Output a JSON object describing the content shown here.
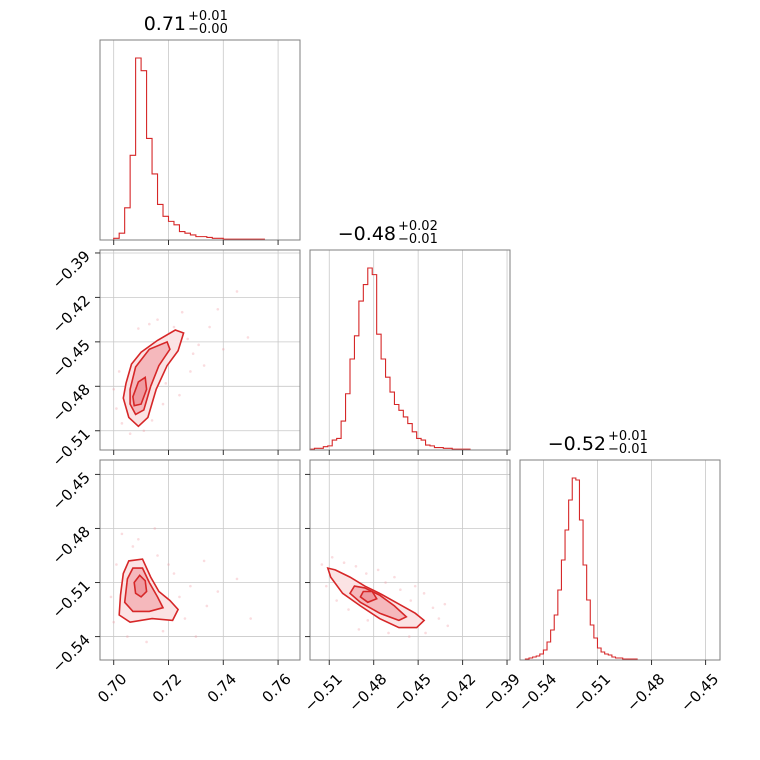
{
  "chart_data": {
    "type": "corner",
    "color": "#d62728",
    "grid": true,
    "parameters": [
      {
        "title_value": "0.71",
        "title_upper": "+0.01",
        "title_lower": "−0.00",
        "range": [
          0.695,
          0.768
        ],
        "ticks": [
          0.7,
          0.72,
          0.74,
          0.76
        ],
        "tick_labels": [
          "0.70",
          "0.72",
          "0.74",
          "0.76"
        ],
        "hist_bins": [
          0.7,
          0.702,
          0.704,
          0.706,
          0.708,
          0.71,
          0.712,
          0.714,
          0.716,
          0.718,
          0.72,
          0.722,
          0.724,
          0.726,
          0.728,
          0.73,
          0.732,
          0.734,
          0.736,
          0.738,
          0.74,
          0.745,
          0.75,
          0.755,
          0.76
        ],
        "hist_counts": [
          2,
          8,
          38,
          100,
          215,
          200,
          120,
          78,
          42,
          28,
          22,
          18,
          10,
          8,
          6,
          4,
          4,
          3,
          2,
          2,
          1,
          1,
          1,
          0
        ]
      },
      {
        "title_value": "−0.48",
        "title_upper": "+0.02",
        "title_lower": "−0.01",
        "range": [
          -0.523,
          -0.388
        ],
        "ticks": [
          -0.51,
          -0.48,
          -0.45,
          -0.42,
          -0.39
        ],
        "tick_labels": [
          "−0.51",
          "−0.48",
          "−0.45",
          "−0.42",
          "−0.39"
        ],
        "hist_bins": [
          -0.523,
          -0.52,
          -0.517,
          -0.514,
          -0.511,
          -0.508,
          -0.505,
          -0.502,
          -0.499,
          -0.496,
          -0.493,
          -0.49,
          -0.487,
          -0.484,
          -0.481,
          -0.478,
          -0.475,
          -0.472,
          -0.469,
          -0.466,
          -0.463,
          -0.46,
          -0.457,
          -0.454,
          -0.451,
          -0.448,
          -0.445,
          -0.442,
          -0.439,
          -0.436,
          -0.433,
          -0.43,
          -0.427,
          -0.424,
          -0.421,
          -0.418,
          -0.415,
          -0.412,
          -0.409,
          -0.406,
          -0.403,
          -0.4
        ],
        "hist_counts": [
          1,
          2,
          2,
          4,
          5,
          12,
          14,
          35,
          68,
          110,
          138,
          180,
          200,
          220,
          212,
          140,
          110,
          88,
          70,
          55,
          48,
          40,
          32,
          22,
          14,
          12,
          6,
          5,
          3,
          3,
          2,
          2,
          1,
          1,
          1,
          1,
          0,
          0,
          0,
          0,
          0
        ]
      },
      {
        "title_value": "−0.52",
        "title_upper": "+0.01",
        "title_lower": "−0.01",
        "range": [
          -0.553,
          -0.442
        ],
        "ticks": [
          -0.54,
          -0.51,
          -0.48,
          -0.45
        ],
        "tick_labels": [
          "−0.54",
          "−0.51",
          "−0.48",
          "−0.45"
        ],
        "hist_bins": [
          -0.55,
          -0.548,
          -0.546,
          -0.544,
          -0.542,
          -0.54,
          -0.538,
          -0.536,
          -0.534,
          -0.532,
          -0.53,
          -0.528,
          -0.526,
          -0.524,
          -0.522,
          -0.52,
          -0.518,
          -0.516,
          -0.514,
          -0.512,
          -0.51,
          -0.508,
          -0.506,
          -0.504,
          -0.502,
          -0.5,
          -0.498,
          -0.496,
          -0.494,
          -0.492,
          -0.49,
          -0.488,
          -0.486,
          -0.484,
          -0.482,
          -0.48,
          -0.478,
          -0.476
        ],
        "hist_counts": [
          1,
          2,
          3,
          4,
          6,
          10,
          18,
          30,
          45,
          70,
          100,
          130,
          160,
          182,
          180,
          140,
          95,
          60,
          35,
          22,
          12,
          8,
          6,
          5,
          3,
          2,
          2,
          1,
          1,
          1,
          1,
          0,
          0,
          0,
          0,
          0,
          0
        ]
      }
    ],
    "joint": [
      {
        "x_param": 0,
        "y_param": 1,
        "contours": [
          [
            [
              0.7045,
              -0.478
            ],
            [
              0.7065,
              -0.465
            ],
            [
              0.71,
              -0.457
            ],
            [
              0.716,
              -0.449
            ],
            [
              0.7225,
              -0.442
            ],
            [
              0.7255,
              -0.444
            ],
            [
              0.7235,
              -0.456
            ],
            [
              0.7195,
              -0.466
            ],
            [
              0.7155,
              -0.482
            ],
            [
              0.7125,
              -0.501
            ],
            [
              0.709,
              -0.507
            ],
            [
              0.7055,
              -0.501
            ],
            [
              0.7035,
              -0.488
            ]
          ],
          [
            [
              0.706,
              -0.482
            ],
            [
              0.708,
              -0.467
            ],
            [
              0.713,
              -0.455
            ],
            [
              0.7195,
              -0.45
            ],
            [
              0.7205,
              -0.455
            ],
            [
              0.7165,
              -0.466
            ],
            [
              0.7135,
              -0.48
            ],
            [
              0.711,
              -0.496
            ],
            [
              0.708,
              -0.499
            ],
            [
              0.706,
              -0.492
            ]
          ],
          [
            [
              0.707,
              -0.487
            ],
            [
              0.709,
              -0.477
            ],
            [
              0.7115,
              -0.474
            ],
            [
              0.712,
              -0.482
            ],
            [
              0.71,
              -0.492
            ],
            [
              0.7075,
              -0.493
            ]
          ]
        ],
        "scatter": [
          [
            0.716,
            -0.435
          ],
          [
            0.722,
            -0.44
          ],
          [
            0.727,
            -0.448
          ],
          [
            0.731,
            -0.452
          ],
          [
            0.738,
            -0.428
          ],
          [
            0.745,
            -0.416
          ],
          [
            0.733,
            -0.466
          ],
          [
            0.728,
            -0.47
          ],
          [
            0.719,
            -0.478
          ],
          [
            0.724,
            -0.486
          ],
          [
            0.702,
            -0.47
          ],
          [
            0.7,
            -0.482
          ],
          [
            0.701,
            -0.495
          ],
          [
            0.703,
            -0.505
          ],
          [
            0.711,
            -0.51
          ],
          [
            0.714,
            -0.503
          ],
          [
            0.709,
            -0.441
          ],
          [
            0.713,
            -0.438
          ],
          [
            0.735,
            -0.44
          ],
          [
            0.74,
            -0.455
          ],
          [
            0.718,
            -0.492
          ],
          [
            0.706,
            -0.512
          ],
          [
            0.749,
            -0.447
          ],
          [
            0.725,
            -0.43
          ],
          [
            0.72,
            -0.462
          ],
          [
            0.729,
            -0.458
          ]
        ]
      },
      {
        "x_param": 0,
        "y_param": 2,
        "contours": [
          [
            [
              0.7035,
              -0.505
            ],
            [
              0.7055,
              -0.498
            ],
            [
              0.7105,
              -0.497
            ],
            [
              0.7135,
              -0.507
            ],
            [
              0.7165,
              -0.515
            ],
            [
              0.7205,
              -0.52
            ],
            [
              0.7235,
              -0.525
            ],
            [
              0.7215,
              -0.531
            ],
            [
              0.714,
              -0.53
            ],
            [
              0.706,
              -0.532
            ],
            [
              0.702,
              -0.528
            ],
            [
              0.7025,
              -0.517
            ]
          ],
          [
            [
              0.705,
              -0.508
            ],
            [
              0.707,
              -0.502
            ],
            [
              0.7105,
              -0.502
            ],
            [
              0.713,
              -0.51
            ],
            [
              0.716,
              -0.518
            ],
            [
              0.718,
              -0.524
            ],
            [
              0.713,
              -0.526
            ],
            [
              0.707,
              -0.526
            ],
            [
              0.704,
              -0.521
            ]
          ],
          [
            [
              0.7075,
              -0.51
            ],
            [
              0.7095,
              -0.506
            ],
            [
              0.7115,
              -0.509
            ],
            [
              0.712,
              -0.515
            ],
            [
              0.71,
              -0.518
            ],
            [
              0.708,
              -0.516
            ]
          ]
        ],
        "scatter": [
          [
            0.703,
            -0.483
          ],
          [
            0.707,
            -0.49
          ],
          [
            0.716,
            -0.495
          ],
          [
            0.722,
            -0.505
          ],
          [
            0.728,
            -0.512
          ],
          [
            0.734,
            -0.523
          ],
          [
            0.726,
            -0.53
          ],
          [
            0.718,
            -0.537
          ],
          [
            0.705,
            -0.54
          ],
          [
            0.7,
            -0.532
          ],
          [
            0.699,
            -0.518
          ],
          [
            0.712,
            -0.543
          ],
          [
            0.72,
            -0.5
          ],
          [
            0.73,
            -0.54
          ],
          [
            0.738,
            -0.515
          ],
          [
            0.745,
            -0.508
          ],
          [
            0.709,
            -0.486
          ],
          [
            0.715,
            -0.48
          ],
          [
            0.724,
            -0.518
          ],
          [
            0.701,
            -0.5
          ],
          [
            0.75,
            -0.53
          ],
          [
            0.733,
            -0.498
          ]
        ]
      },
      {
        "x_param": 1,
        "y_param": 2,
        "contours": [
          [
            [
              -0.511,
              -0.502
            ],
            [
              -0.506,
              -0.503
            ],
            [
              -0.496,
              -0.507
            ],
            [
              -0.486,
              -0.512
            ],
            [
              -0.476,
              -0.516
            ],
            [
              -0.463,
              -0.522
            ],
            [
              -0.452,
              -0.527
            ],
            [
              -0.446,
              -0.531
            ],
            [
              -0.451,
              -0.535
            ],
            [
              -0.463,
              -0.535
            ],
            [
              -0.476,
              -0.53
            ],
            [
              -0.489,
              -0.523
            ],
            [
              -0.501,
              -0.516
            ],
            [
              -0.509,
              -0.507
            ]
          ],
          [
            [
              -0.493,
              -0.512
            ],
            [
              -0.486,
              -0.513
            ],
            [
              -0.476,
              -0.517
            ],
            [
              -0.466,
              -0.523
            ],
            [
              -0.458,
              -0.529
            ],
            [
              -0.463,
              -0.531
            ],
            [
              -0.476,
              -0.527
            ],
            [
              -0.489,
              -0.521
            ],
            [
              -0.496,
              -0.516
            ]
          ],
          [
            [
              -0.487,
              -0.515
            ],
            [
              -0.481,
              -0.515
            ],
            [
              -0.478,
              -0.519
            ],
            [
              -0.484,
              -0.521
            ],
            [
              -0.489,
              -0.518
            ]
          ]
        ],
        "scatter": [
          [
            -0.508,
            -0.496
          ],
          [
            -0.5,
            -0.499
          ],
          [
            -0.492,
            -0.501
          ],
          [
            -0.515,
            -0.5
          ],
          [
            -0.485,
            -0.505
          ],
          [
            -0.472,
            -0.51
          ],
          [
            -0.462,
            -0.514
          ],
          [
            -0.455,
            -0.52
          ],
          [
            -0.44,
            -0.524
          ],
          [
            -0.445,
            -0.538
          ],
          [
            -0.456,
            -0.54
          ],
          [
            -0.47,
            -0.538
          ],
          [
            -0.484,
            -0.531
          ],
          [
            -0.497,
            -0.525
          ],
          [
            -0.505,
            -0.52
          ],
          [
            -0.436,
            -0.53
          ],
          [
            -0.43,
            -0.534
          ],
          [
            -0.477,
            -0.503
          ],
          [
            -0.466,
            -0.507
          ],
          [
            -0.452,
            -0.512
          ],
          [
            -0.512,
            -0.512
          ],
          [
            -0.49,
            -0.536
          ],
          [
            -0.432,
            -0.522
          ],
          [
            -0.446,
            -0.516
          ]
        ]
      }
    ]
  }
}
